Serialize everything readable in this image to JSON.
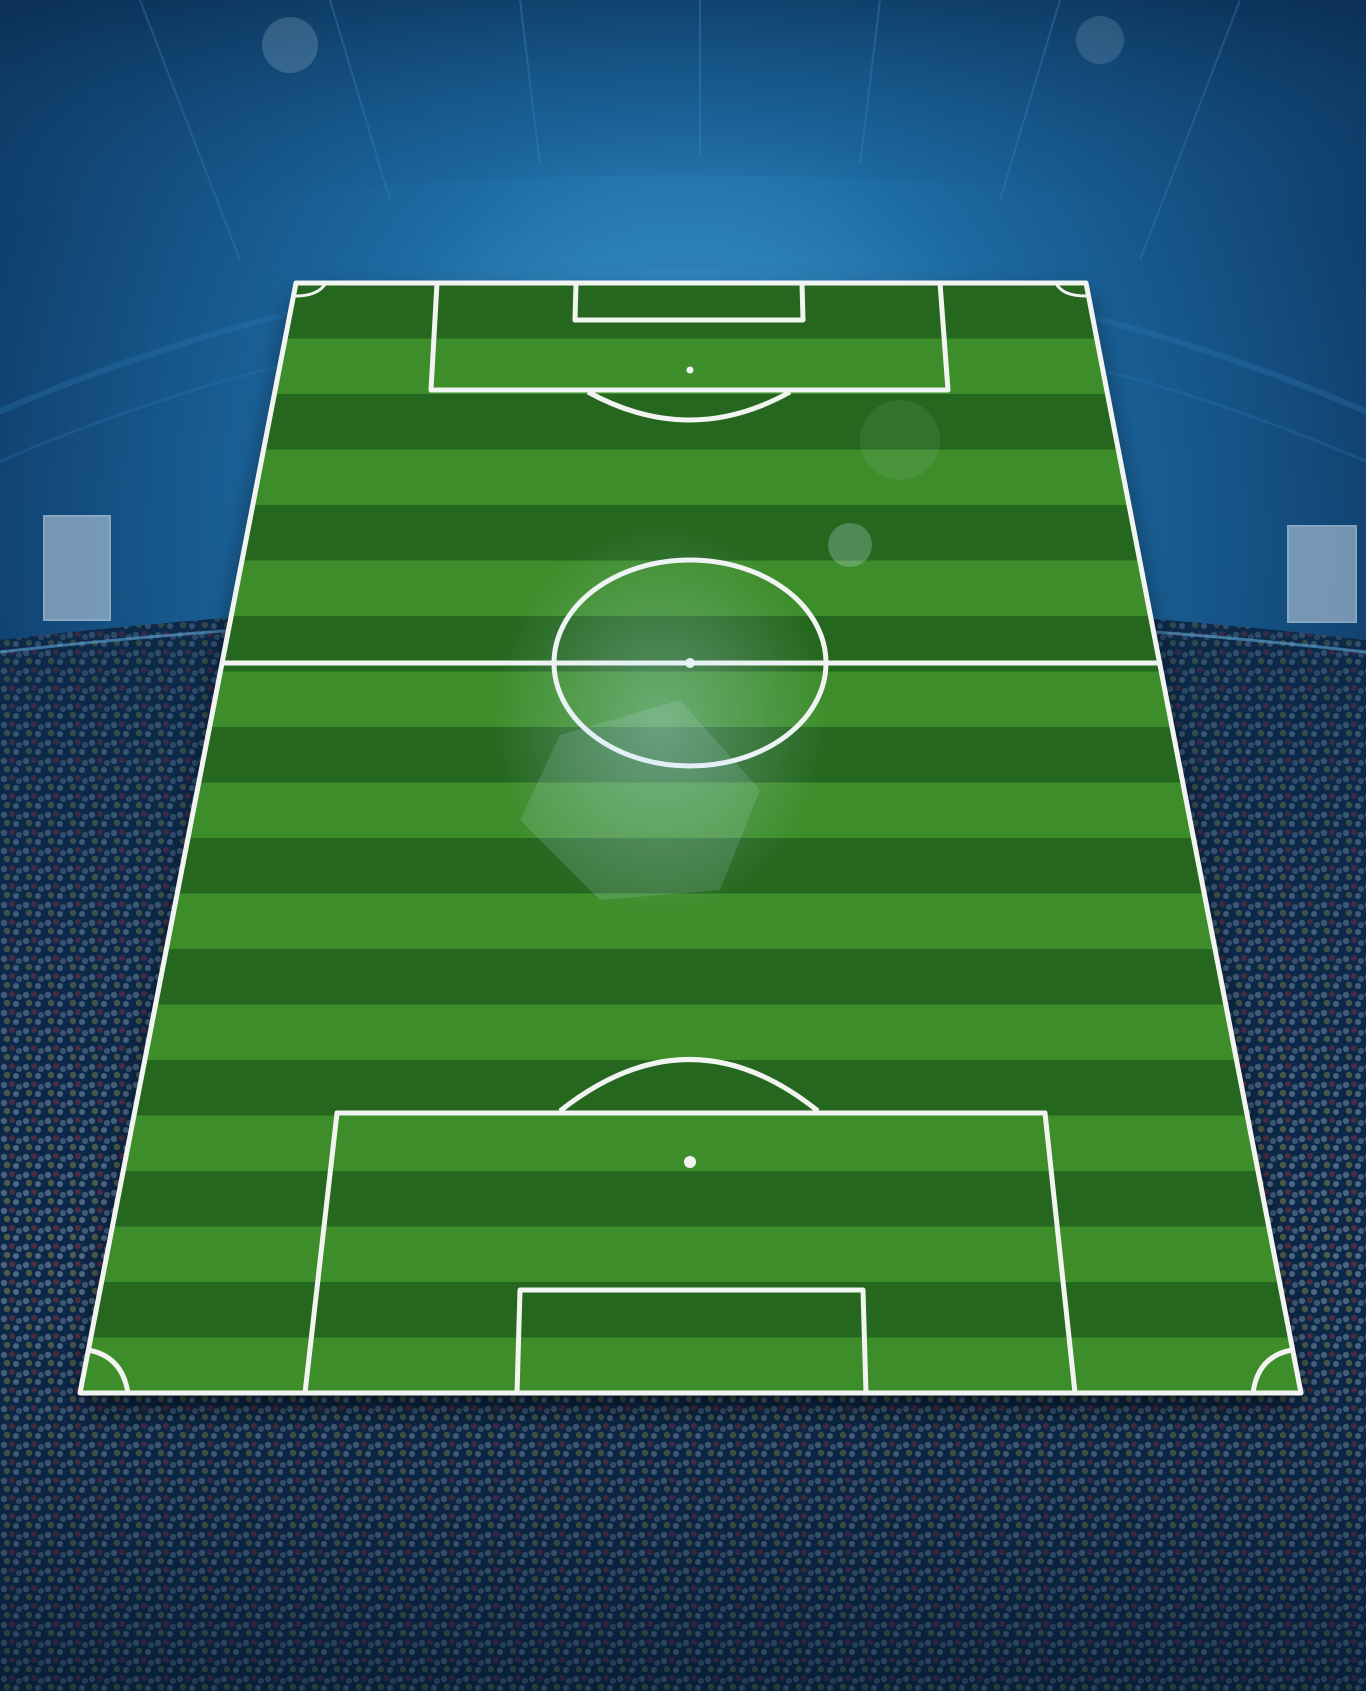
{
  "scene": {
    "subject": "football-pitch",
    "background": "stadium-crowd",
    "colors": {
      "sky_top": "#0e3a66",
      "sky_mid": "#1d6aa3",
      "glow": "#4aa8e0",
      "crowd_dark": "#0d2848",
      "crowd_red": "#8a2f3f",
      "crowd_yellow": "#b7a84a",
      "crowd_white": "#9fb3c8",
      "grass_light": "#3d8d2a",
      "grass_dark": "#25671e",
      "line": "#f2f4f2",
      "screen": "#c7d6e4"
    },
    "pitch": {
      "stripes": 20
    }
  }
}
